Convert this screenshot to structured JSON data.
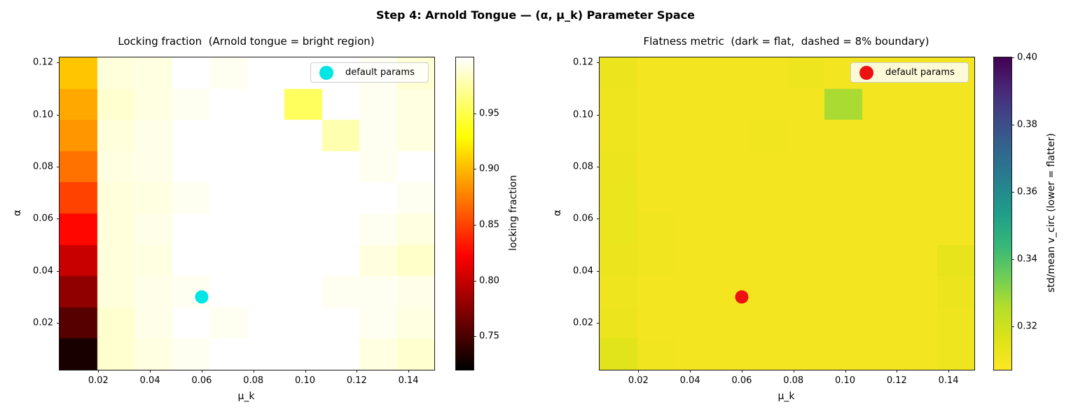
{
  "figure": {
    "title": "Step 4: Arnold Tongue — (α, μ_k) Parameter Space",
    "background_color": "#ffffff"
  },
  "chart_data": [
    {
      "type": "heatmap",
      "title": "Locking fraction  (Arnold tongue = bright region)",
      "xlabel": "μ_k",
      "ylabel": "α",
      "colormap": "hot",
      "colormap_reversed": false,
      "vmin": 0.72,
      "vmax": 1.0,
      "xlim": [
        0.005,
        0.15
      ],
      "ylim": [
        0.002,
        0.122
      ],
      "x_centers": [
        0.01,
        0.0256,
        0.0411,
        0.0567,
        0.0722,
        0.0878,
        0.1033,
        0.1189,
        0.1344,
        0.15
      ],
      "y_centers": [
        0.01,
        0.0222,
        0.0344,
        0.0467,
        0.0589,
        0.0711,
        0.0833,
        0.0956,
        0.1078,
        0.12
      ],
      "xticks": [
        0.02,
        0.04,
        0.06,
        0.08,
        0.1,
        0.12,
        0.14
      ],
      "xtick_labels": [
        "0.02",
        "0.04",
        "0.06",
        "0.08",
        "0.10",
        "0.12",
        "0.14"
      ],
      "yticks": [
        0.02,
        0.04,
        0.06,
        0.08,
        0.1,
        0.12
      ],
      "ytick_labels": [
        "0.02",
        "0.04",
        "0.06",
        "0.08",
        "0.10",
        "0.12"
      ],
      "values_rows_bottom_to_top": [
        [
          0.73,
          0.987,
          0.992,
          0.996,
          1.0,
          1.0,
          1.0,
          1.0,
          0.992,
          0.987
        ],
        [
          0.755,
          0.987,
          0.994,
          1.0,
          0.996,
          1.0,
          1.0,
          1.0,
          0.996,
          0.992
        ],
        [
          0.778,
          0.99,
          0.994,
          0.996,
          1.0,
          1.0,
          1.0,
          0.996,
          0.996,
          0.994
        ],
        [
          0.8,
          0.99,
          0.992,
          1.0,
          1.0,
          1.0,
          1.0,
          1.0,
          0.991,
          0.985
        ],
        [
          0.825,
          0.99,
          0.994,
          1.0,
          1.0,
          1.0,
          1.0,
          1.0,
          0.996,
          0.992
        ],
        [
          0.85,
          0.99,
          0.992,
          0.996,
          1.0,
          1.0,
          1.0,
          1.0,
          1.0,
          0.996
        ],
        [
          0.87,
          0.992,
          0.994,
          1.0,
          1.0,
          1.0,
          1.0,
          1.0,
          0.996,
          1.0
        ],
        [
          0.885,
          0.99,
          0.994,
          1.0,
          1.0,
          1.0,
          1.0,
          0.978,
          0.996,
          0.992
        ],
        [
          0.893,
          0.987,
          0.992,
          0.996,
          1.0,
          1.0,
          0.955,
          1.0,
          0.996,
          0.992
        ],
        [
          0.905,
          0.99,
          0.992,
          1.0,
          0.996,
          1.0,
          1.0,
          1.0,
          0.996,
          0.988
        ]
      ],
      "colorbar": {
        "label": "locking fraction",
        "ticks": [
          0.75,
          0.8,
          0.85,
          0.9,
          0.95
        ],
        "tick_labels": [
          "0.75",
          "0.80",
          "0.85",
          "0.90",
          "0.95"
        ]
      },
      "legend": {
        "label": "default params",
        "marker_color": "#00e5e5"
      },
      "marker": {
        "x": 0.06,
        "y": 0.03,
        "color": "#00e5e5"
      }
    },
    {
      "type": "heatmap",
      "title": "Flatness metric  (dark = flat,  dashed = 8% boundary)",
      "xlabel": "μ_k",
      "ylabel": "α",
      "colormap": "viridis",
      "colormap_reversed": true,
      "vmin": 0.307,
      "vmax": 0.4,
      "xlim": [
        0.005,
        0.15
      ],
      "ylim": [
        0.002,
        0.122
      ],
      "x_centers": [
        0.01,
        0.0256,
        0.0411,
        0.0567,
        0.0722,
        0.0878,
        0.1033,
        0.1189,
        0.1344,
        0.15
      ],
      "y_centers": [
        0.01,
        0.0222,
        0.0344,
        0.0467,
        0.0589,
        0.0711,
        0.0833,
        0.0956,
        0.1078,
        0.12
      ],
      "xticks": [
        0.02,
        0.04,
        0.06,
        0.08,
        0.1,
        0.12,
        0.14
      ],
      "xtick_labels": [
        "0.02",
        "0.04",
        "0.06",
        "0.08",
        "0.10",
        "0.12",
        "0.14"
      ],
      "yticks": [
        0.02,
        0.04,
        0.06,
        0.08,
        0.1,
        0.12
      ],
      "ytick_labels": [
        "0.02",
        "0.04",
        "0.06",
        "0.08",
        "0.10",
        "0.12"
      ],
      "values_rows_bottom_to_top": [
        [
          0.315,
          0.3105,
          0.31,
          0.31,
          0.31,
          0.31,
          0.31,
          0.31,
          0.31,
          0.3115
        ],
        [
          0.312,
          0.31,
          0.31,
          0.31,
          0.31,
          0.31,
          0.31,
          0.31,
          0.31,
          0.311
        ],
        [
          0.3115,
          0.31,
          0.31,
          0.31,
          0.31,
          0.31,
          0.31,
          0.31,
          0.31,
          0.312
        ],
        [
          0.312,
          0.3105,
          0.31,
          0.31,
          0.31,
          0.31,
          0.31,
          0.31,
          0.31,
          0.3135
        ],
        [
          0.3125,
          0.3105,
          0.31,
          0.31,
          0.31,
          0.31,
          0.31,
          0.31,
          0.31,
          0.31
        ],
        [
          0.3125,
          0.31,
          0.31,
          0.31,
          0.31,
          0.31,
          0.31,
          0.31,
          0.31,
          0.31
        ],
        [
          0.312,
          0.31,
          0.31,
          0.31,
          0.31,
          0.31,
          0.31,
          0.31,
          0.31,
          0.31
        ],
        [
          0.3115,
          0.31,
          0.31,
          0.31,
          0.3105,
          0.31,
          0.31,
          0.31,
          0.31,
          0.31
        ],
        [
          0.311,
          0.31,
          0.31,
          0.31,
          0.31,
          0.31,
          0.327,
          0.31,
          0.31,
          0.31
        ],
        [
          0.312,
          0.31,
          0.31,
          0.31,
          0.31,
          0.311,
          0.31,
          0.31,
          0.31,
          0.31
        ]
      ],
      "colorbar": {
        "label": "std/mean v_circ  (lower = flatter)",
        "ticks": [
          0.32,
          0.34,
          0.36,
          0.38,
          0.4
        ],
        "tick_labels": [
          "0.32",
          "0.34",
          "0.36",
          "0.38",
          "0.40"
        ]
      },
      "legend": {
        "label": "default params",
        "marker_color": "#ee1111"
      },
      "marker": {
        "x": 0.06,
        "y": 0.03,
        "color": "#ee1111"
      }
    }
  ]
}
